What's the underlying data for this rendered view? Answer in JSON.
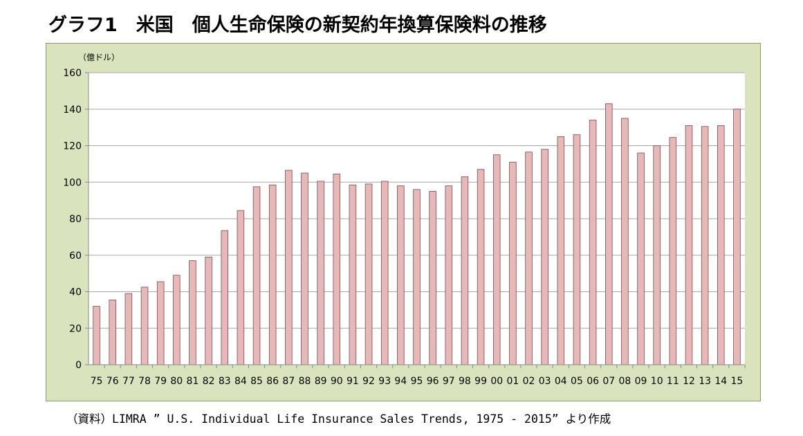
{
  "title": "グラフ1　米国　個人生命保険の新契約年換算保険料の推移",
  "source": "（資料）LIMRA ” U.S. Individual Life Insurance Sales Trends, 1975 - 2015” より作成",
  "colors": {
    "bar_fill": "#e6b9b8",
    "bar_stroke": "#7a4a4a",
    "frame_bg": "#d9e4bf",
    "plot_bg": "#ffffff",
    "grid": "#a6a6a6"
  },
  "chart_data": {
    "type": "bar",
    "unit_label": "（億ドル）",
    "title": "グラフ1　米国　個人生命保険の新契約年換算保険料の推移",
    "xlabel": "",
    "ylabel": "",
    "ylim": [
      0,
      160
    ],
    "yticks": [
      "0",
      "20",
      "40",
      "60",
      "80",
      "100",
      "120",
      "140",
      "160"
    ],
    "grid": true,
    "categories": [
      "75",
      "76",
      "77",
      "78",
      "79",
      "80",
      "81",
      "82",
      "83",
      "84",
      "85",
      "86",
      "87",
      "88",
      "89",
      "90",
      "91",
      "92",
      "93",
      "94",
      "95",
      "96",
      "97",
      "98",
      "99",
      "00",
      "01",
      "02",
      "03",
      "04",
      "05",
      "06",
      "07",
      "08",
      "09",
      "10",
      "11",
      "12",
      "13",
      "14",
      "15"
    ],
    "values": [
      32,
      35.5,
      39,
      42.5,
      45.5,
      49,
      57,
      59,
      73.5,
      84.5,
      97.5,
      98.5,
      106.5,
      105,
      100.5,
      104.5,
      98.5,
      99,
      100.5,
      98,
      96,
      95,
      98,
      103,
      107,
      115,
      111,
      116.5,
      118,
      125,
      126,
      134,
      143,
      135,
      116,
      120,
      124.5,
      131,
      130.5,
      131,
      140
    ]
  }
}
